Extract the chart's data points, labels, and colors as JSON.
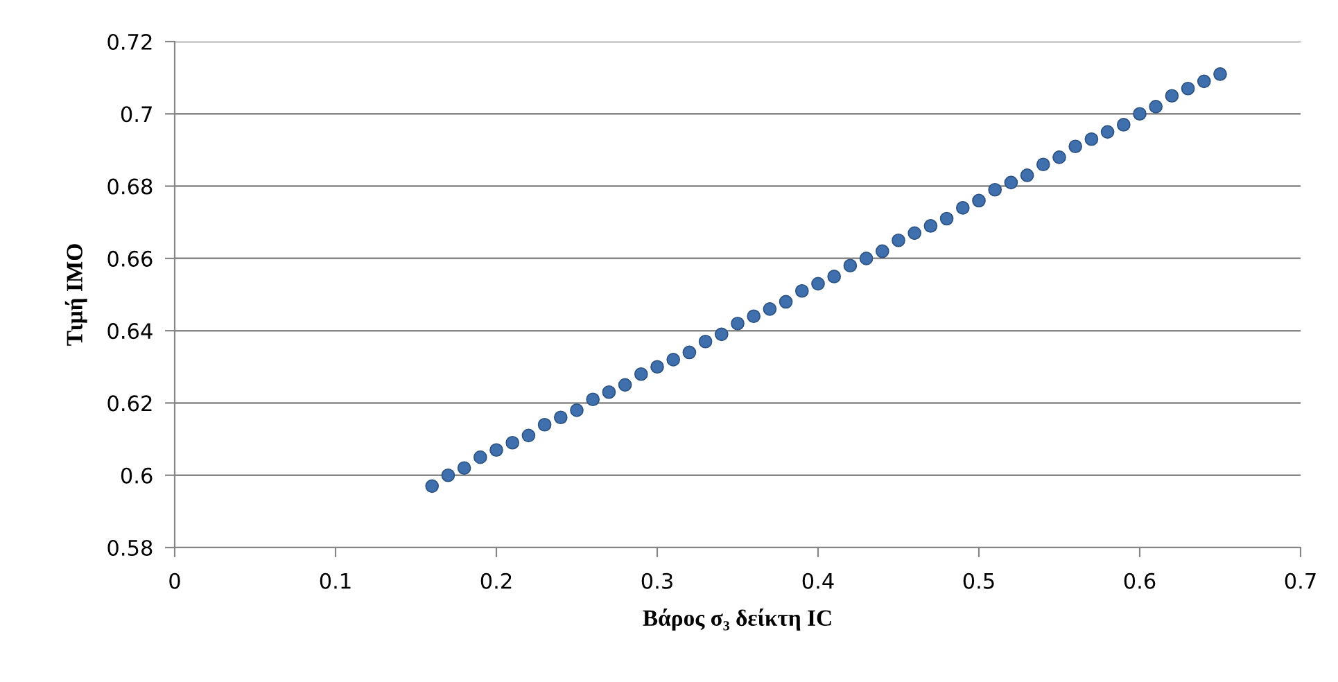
{
  "chart_data": {
    "type": "scatter",
    "xlabel": "Βάρος σ₃ δείκτη IC",
    "ylabel": "Τιμή IMO",
    "x": [
      0.16,
      0.17,
      0.18,
      0.19,
      0.2,
      0.21,
      0.22,
      0.23,
      0.24,
      0.25,
      0.26,
      0.27,
      0.28,
      0.29,
      0.3,
      0.31,
      0.32,
      0.33,
      0.34,
      0.35,
      0.36,
      0.37,
      0.38,
      0.39,
      0.4,
      0.41,
      0.42,
      0.43,
      0.44,
      0.45,
      0.46,
      0.47,
      0.48,
      0.49,
      0.5,
      0.51,
      0.52,
      0.53,
      0.54,
      0.55,
      0.56,
      0.57,
      0.58,
      0.59,
      0.6,
      0.61,
      0.62,
      0.63,
      0.64,
      0.65
    ],
    "series": [
      {
        "color": "#3f6fad",
        "values": [
          0.597,
          0.6,
          0.602,
          0.605,
          0.607,
          0.609,
          0.611,
          0.614,
          0.616,
          0.618,
          0.621,
          0.623,
          0.625,
          0.628,
          0.63,
          0.632,
          0.634,
          0.637,
          0.639,
          0.642,
          0.644,
          0.646,
          0.648,
          0.651,
          0.653,
          0.655,
          0.658,
          0.66,
          0.662,
          0.665,
          0.667,
          0.669,
          0.671,
          0.674,
          0.676,
          0.679,
          0.681,
          0.683,
          0.686,
          0.688,
          0.691,
          0.693,
          0.695,
          0.697,
          0.7,
          0.702,
          0.705,
          0.707,
          0.709,
          0.711
        ]
      }
    ],
    "xlim": [
      0,
      0.7
    ],
    "xticks": [
      0,
      0.1,
      0.2,
      0.3,
      0.4,
      0.5,
      0.6,
      0.7
    ],
    "ylim": [
      0.58,
      0.72
    ],
    "yticks": [
      0.58,
      0.6,
      0.62,
      0.64,
      0.66,
      0.68,
      0.7,
      0.72
    ],
    "grid": "y",
    "marker": "circle"
  }
}
